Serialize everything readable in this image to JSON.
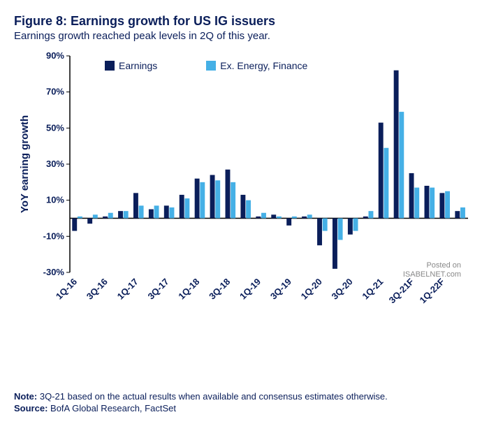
{
  "title": "Figure 8: Earnings growth for US IG issuers",
  "subtitle": "Earnings growth reached peak levels in 2Q of this year.",
  "note_label": "Note:",
  "note_text": "3Q-21 based on the actual results when available and consensus estimates otherwise.",
  "source_label": "Source:",
  "source_text": "BofA Global Research, FactSet",
  "watermark_line1": "Posted on",
  "watermark_line2": "ISABELNET.com",
  "chart": {
    "type": "bar",
    "ylabel": "YoY earning growth",
    "ylim": [
      -30,
      90
    ],
    "ytick_step": 20,
    "ytick_labels": [
      "-30%",
      "-10%",
      "10%",
      "30%",
      "50%",
      "70%",
      "90%"
    ],
    "ytick_values": [
      -30,
      -10,
      10,
      30,
      50,
      70,
      90
    ],
    "categories": [
      "1Q-16",
      "2Q-16",
      "3Q-16",
      "4Q-16",
      "1Q-17",
      "2Q-17",
      "3Q-17",
      "4Q-17",
      "1Q-18",
      "2Q-18",
      "3Q-18",
      "4Q-18",
      "1Q-19",
      "2Q-19",
      "3Q-19",
      "4Q-19",
      "1Q-20",
      "2Q-20",
      "3Q-20",
      "4Q-20",
      "1Q-21",
      "2Q-21",
      "3Q-21F",
      "4Q-21F",
      "1Q-22F",
      "2Q-22F"
    ],
    "x_shown": [
      "1Q-16",
      "3Q-16",
      "1Q-17",
      "3Q-17",
      "1Q-18",
      "3Q-18",
      "1Q-19",
      "3Q-19",
      "1Q-20",
      "3Q-20",
      "1Q-21",
      "3Q-21F",
      "1Q-22F"
    ],
    "series": [
      {
        "name": "Earnings",
        "color": "#0a1e5a",
        "values": [
          -7,
          -3,
          1,
          4,
          14,
          5,
          7,
          13,
          22,
          24,
          27,
          13,
          1,
          2,
          -4,
          1,
          -15,
          -28,
          -9,
          1,
          53,
          82,
          25,
          18,
          14,
          4
        ]
      },
      {
        "name": "Ex. Energy, Finance",
        "color": "#45b0e6",
        "values": [
          1,
          2,
          3,
          4,
          7,
          7,
          6,
          11,
          20,
          21,
          20,
          10,
          3,
          1,
          1,
          2,
          -7,
          -12,
          -7,
          4,
          39,
          59,
          17,
          17,
          15,
          6
        ]
      }
    ],
    "title_fontsize": 18,
    "label_fontsize": 15,
    "tick_fontsize": 13,
    "background_color": "#ffffff",
    "axis_color": "#000000",
    "bar_group_width": 0.7
  }
}
